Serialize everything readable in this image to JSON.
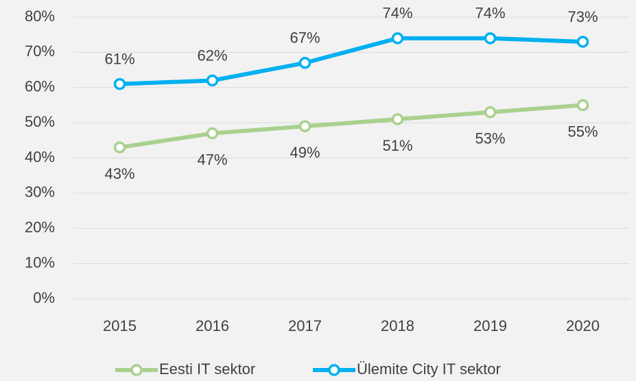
{
  "chart_data": {
    "type": "line",
    "categories": [
      "2015",
      "2016",
      "2017",
      "2018",
      "2019",
      "2020"
    ],
    "series": [
      {
        "name": "Eesti IT sektor",
        "color": "#a9d18e",
        "values": [
          43,
          47,
          49,
          51,
          53,
          55
        ],
        "value_labels": [
          "43%",
          "47%",
          "49%",
          "51%",
          "53%",
          "55%"
        ],
        "label_position": "below"
      },
      {
        "name": "Ülemite City IT sektor",
        "color": "#00b0f0",
        "values": [
          61,
          62,
          67,
          74,
          74,
          73
        ],
        "value_labels": [
          "61%",
          "62%",
          "67%",
          "74%",
          "74%",
          "73%"
        ],
        "label_position": "above"
      }
    ],
    "ylim": [
      0,
      80
    ],
    "yticks": [
      {
        "value": 0,
        "label": "0%"
      },
      {
        "value": 10,
        "label": "10%"
      },
      {
        "value": 20,
        "label": "20%"
      },
      {
        "value": 30,
        "label": "30%"
      },
      {
        "value": 40,
        "label": "40%"
      },
      {
        "value": 50,
        "label": "50%"
      },
      {
        "value": 60,
        "label": "60%"
      },
      {
        "value": 70,
        "label": "70%"
      },
      {
        "value": 80,
        "label": "80%"
      }
    ],
    "grid": true,
    "legend": "bottom"
  }
}
